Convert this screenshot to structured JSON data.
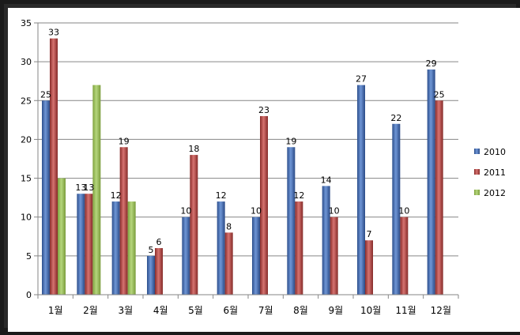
{
  "chart_data": {
    "type": "bar",
    "title": "",
    "xlabel": "",
    "ylabel": "",
    "ylim": [
      0,
      35
    ],
    "yticks": [
      0,
      5,
      10,
      15,
      20,
      25,
      30,
      35
    ],
    "grid": true,
    "legend_position": "right",
    "categories": [
      "1월",
      "2월",
      "3월",
      "4월",
      "5월",
      "6월",
      "7월",
      "8월",
      "9월",
      "10월",
      "11월",
      "12월"
    ],
    "series": [
      {
        "name": "2010",
        "color": "#4a72b8",
        "values": [
          25,
          13,
          12,
          5,
          10,
          12,
          10,
          19,
          14,
          27,
          22,
          29
        ],
        "labels": [
          "25",
          "13",
          "12",
          "5",
          "10",
          "12",
          "10",
          "19",
          "14",
          "27",
          "22",
          "29"
        ]
      },
      {
        "name": "2011",
        "color": "#b84a47",
        "values": [
          33,
          13,
          19,
          6,
          18,
          8,
          23,
          12,
          10,
          7,
          10,
          25
        ],
        "labels": [
          "33",
          "13",
          "19",
          "6",
          "18",
          "8",
          "23",
          "12",
          "10",
          "7",
          "10",
          "25"
        ]
      },
      {
        "name": "2012",
        "color": "#98bb59",
        "values": [
          15,
          27,
          12,
          null,
          null,
          null,
          null,
          null,
          null,
          null,
          null,
          null
        ],
        "labels": [
          "",
          "",
          "",
          "",
          "",
          "",
          "",
          "",
          "",
          "",
          "",
          ""
        ]
      }
    ]
  }
}
